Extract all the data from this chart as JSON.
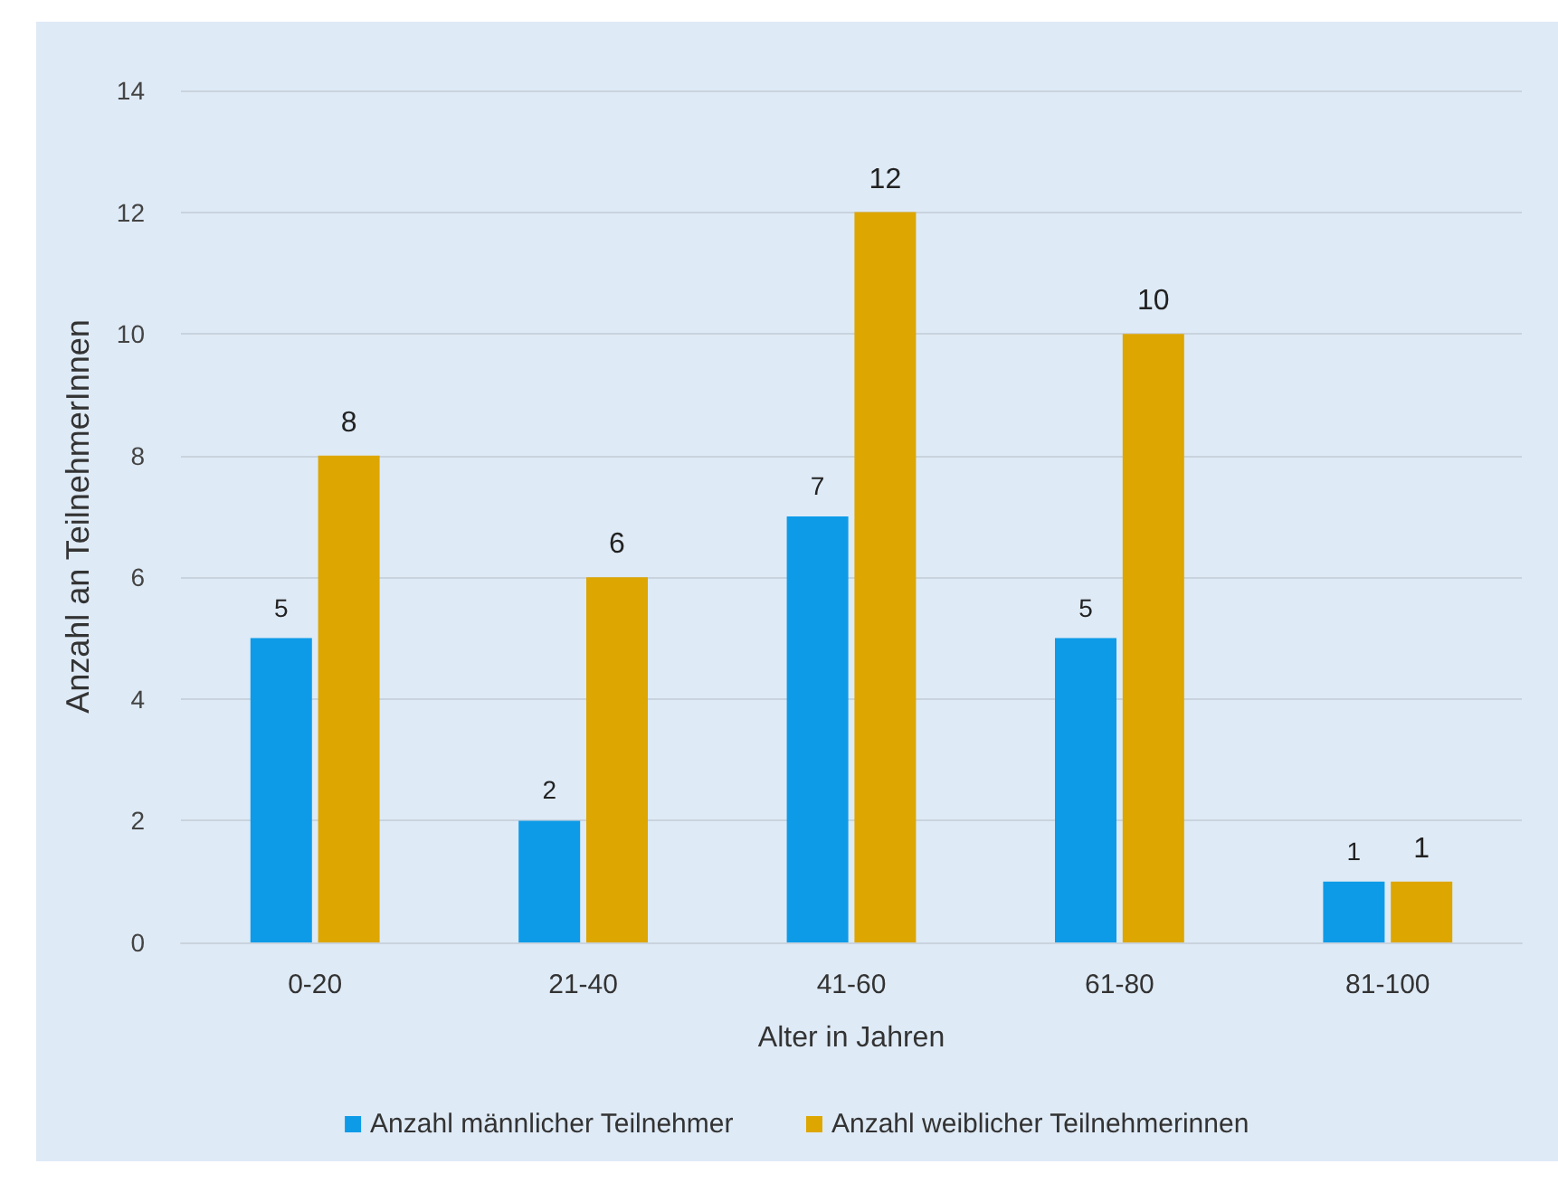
{
  "chart_data": {
    "type": "bar",
    "xlabel": "Alter in Jahren",
    "ylabel": "Anzahl an TeilnehmerInnen",
    "categories": [
      "0-20",
      "21-40",
      "41-60",
      "61-80",
      "81-100"
    ],
    "series": [
      {
        "name": "Anzahl männlicher Teilnehmer",
        "color": "#0d9be8",
        "values": [
          5,
          2,
          7,
          5,
          1
        ]
      },
      {
        "name": "Anzahl weiblicher Teilnehmerinnen",
        "color": "#dda600",
        "values": [
          8,
          6,
          12,
          10,
          1
        ]
      }
    ],
    "ylim": [
      0,
      14
    ],
    "yticks": [
      0,
      2,
      4,
      6,
      8,
      10,
      12,
      14
    ],
    "grid": "y",
    "legend": "bottom",
    "data_labels": true
  }
}
